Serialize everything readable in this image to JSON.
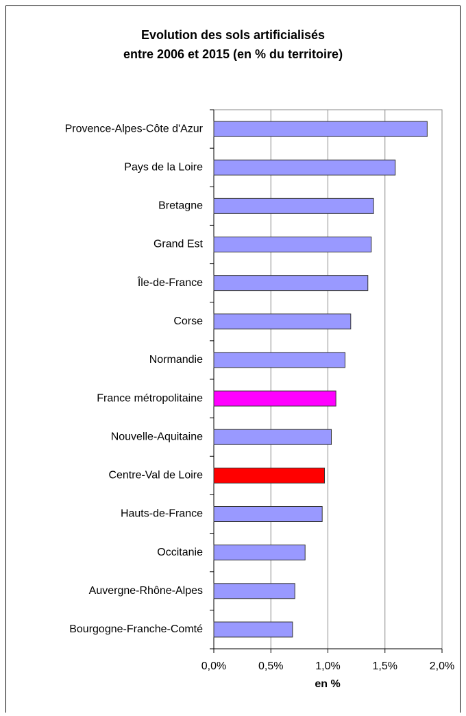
{
  "chart_data": {
    "type": "barh",
    "title": "Evolution des sols artificialisés",
    "subtitle": "entre 2006 et 2015 (en % du territoire)",
    "xlabel": "en %",
    "categories": [
      "Provence-Alpes-Côte d'Azur",
      "Pays de la Loire",
      "Bretagne",
      "Grand Est",
      "Île-de-France",
      "Corse",
      "Normandie",
      "France métropolitaine",
      "Nouvelle-Aquitaine",
      "Centre-Val de Loire",
      "Hauts-de-France",
      "Occitanie",
      "Auvergne-Rhône-Alpes",
      "Bourgogne-Franche-Comté"
    ],
    "values": [
      1.87,
      1.59,
      1.4,
      1.38,
      1.35,
      1.2,
      1.15,
      1.07,
      1.03,
      0.97,
      0.95,
      0.8,
      0.71,
      0.69
    ],
    "colors": [
      "#9999ff",
      "#9999ff",
      "#9999ff",
      "#9999ff",
      "#9999ff",
      "#9999ff",
      "#9999ff",
      "#ff00ff",
      "#9999ff",
      "#ff0000",
      "#9999ff",
      "#9999ff",
      "#9999ff",
      "#9999ff"
    ],
    "xlim": [
      0,
      2
    ],
    "xticks": [
      {
        "value": 0,
        "label": "0,0%"
      },
      {
        "value": 0.5,
        "label": "0,5%"
      },
      {
        "value": 1,
        "label": "1,0%"
      },
      {
        "value": 1.5,
        "label": "1,5%"
      },
      {
        "value": 2,
        "label": "2,0%"
      }
    ],
    "grid": true
  }
}
